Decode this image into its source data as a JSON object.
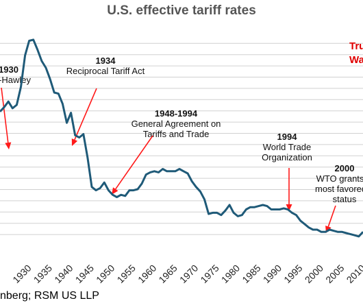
{
  "chart_data": {
    "type": "line",
    "title": "U.S. effective tariff rates",
    "xlabel": "",
    "ylabel": "",
    "xlim": [
      1925,
      2012
    ],
    "ylim": [
      0,
      20
    ],
    "grid": true,
    "color": "#1f5a78",
    "annotation_color": "#ff1a1a",
    "x_ticks": [
      "1930",
      "1935",
      "1940",
      "1945",
      "1950",
      "1955",
      "1960",
      "1965",
      "1970",
      "1975",
      "1980",
      "1985",
      "1990",
      "1995",
      "2000",
      "2005",
      "2010"
    ],
    "series": [
      {
        "name": "",
        "x": [
          1925,
          1926,
          1927,
          1928,
          1929,
          1930,
          1931,
          1932,
          1933,
          1934,
          1935,
          1936,
          1937,
          1938,
          1939,
          1940,
          1941,
          1942,
          1943,
          1944,
          1945,
          1946,
          1947,
          1948,
          1949,
          1950,
          1951,
          1952,
          1953,
          1954,
          1955,
          1956,
          1957,
          1958,
          1959,
          1960,
          1961,
          1962,
          1963,
          1964,
          1965,
          1966,
          1967,
          1968,
          1969,
          1970,
          1971,
          1972,
          1973,
          1974,
          1975,
          1976,
          1977,
          1978,
          1979,
          1980,
          1981,
          1982,
          1983,
          1984,
          1985,
          1986,
          1987,
          1988,
          1989,
          1990,
          1991,
          1992,
          1993,
          1994,
          1995,
          1996,
          1997,
          1998,
          1999,
          2000,
          2001,
          2002,
          2003,
          2004,
          2005,
          2006,
          2007,
          2008,
          2009,
          2010,
          2011,
          2012
        ],
        "values": [
          11.9,
          12.3,
          12.8,
          12.2,
          12.5,
          14.1,
          16.9,
          18.2,
          18.3,
          17.4,
          16.4,
          15.8,
          14.8,
          13.6,
          13.5,
          12.6,
          10.9,
          11.8,
          9.8,
          9.6,
          9.9,
          7.8,
          5.2,
          4.9,
          5.1,
          5.6,
          4.9,
          4.5,
          4.3,
          4.5,
          4.4,
          4.9,
          4.9,
          5.0,
          5.5,
          6.3,
          6.5,
          6.6,
          6.5,
          6.8,
          6.6,
          6.6,
          6.6,
          6.8,
          6.6,
          6.4,
          5.7,
          5.2,
          4.8,
          4.1,
          2.8,
          2.9,
          2.9,
          2.7,
          3.1,
          3.6,
          2.9,
          2.6,
          2.7,
          3.2,
          3.4,
          3.4,
          3.5,
          3.6,
          3.5,
          3.2,
          3.2,
          3.2,
          3.3,
          3.2,
          2.9,
          2.7,
          2.2,
          1.9,
          1.6,
          1.4,
          1.4,
          1.2,
          1.2,
          1.4,
          1.3,
          1.2,
          1.2,
          1.1,
          1.0,
          0.9,
          0.8,
          1.2
        ]
      }
    ],
    "annotations": [
      {
        "year": "1930",
        "text": [
          "-Hawley"
        ]
      },
      {
        "year": "1934",
        "text": [
          "Reciprocal Tariff Act"
        ]
      },
      {
        "year": "1948-1994",
        "text": [
          "General Agreement on",
          "Tariffs and Trade"
        ]
      },
      {
        "year": "1994",
        "text": [
          "World Trade",
          "Organization"
        ]
      },
      {
        "year": "2000",
        "text": [
          "WTO grants C",
          "most favored n",
          "status"
        ]
      }
    ],
    "side_label": [
      "Tru",
      "Wa"
    ],
    "source": "nberg; RSM US LLP"
  }
}
